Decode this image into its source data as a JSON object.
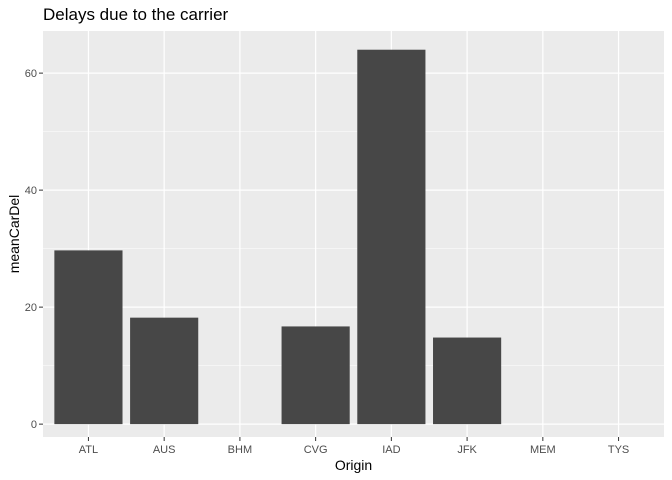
{
  "chart_data": {
    "type": "bar",
    "title": "Delays due to the carrier",
    "xlabel": "Origin",
    "ylabel": "meanCarDel",
    "categories": [
      "ATL",
      "AUS",
      "BHM",
      "CVG",
      "IAD",
      "JFK",
      "MEM",
      "TYS"
    ],
    "values": [
      29.7,
      18.2,
      null,
      16.7,
      64.0,
      14.8,
      null,
      null
    ],
    "yticks": [
      0,
      20,
      40,
      60
    ],
    "ylim": [
      -2.2,
      67.2
    ],
    "grid": true,
    "legend": "none",
    "colors": {
      "panel": "#ebebeb",
      "gridMajor": "#ffffff",
      "bar": "#474747",
      "tickMark": "#333333"
    }
  }
}
